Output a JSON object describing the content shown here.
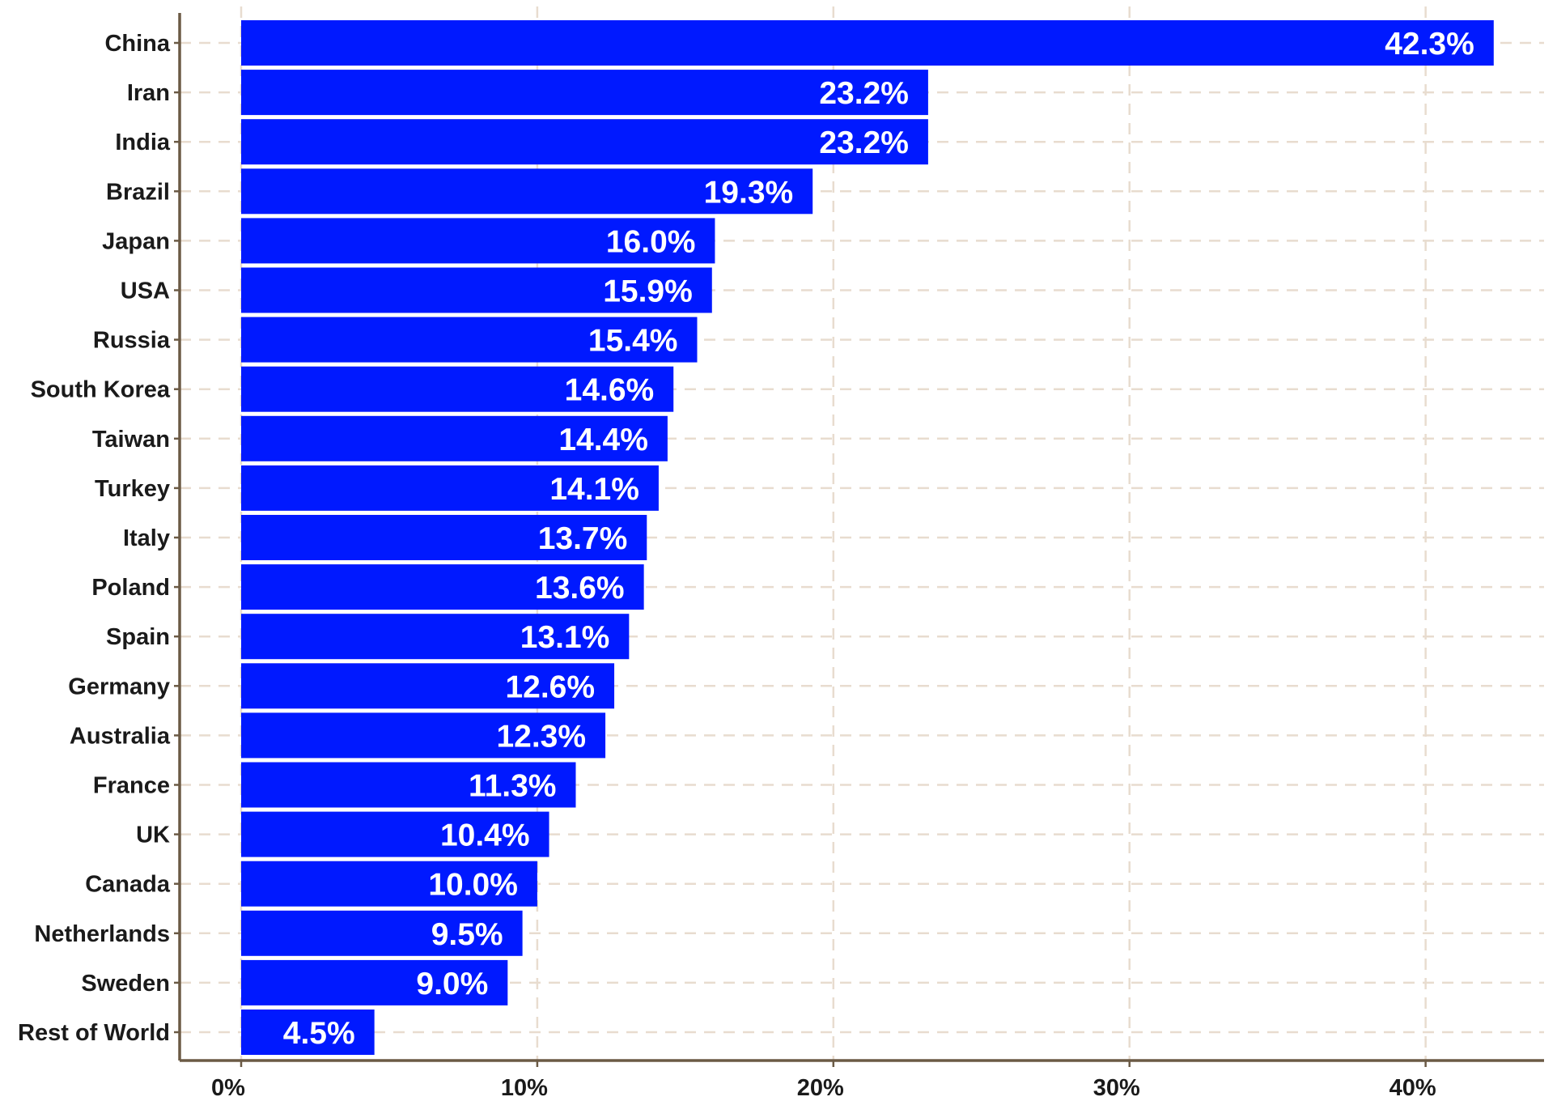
{
  "chart_data": {
    "type": "bar",
    "orientation": "horizontal",
    "categories": [
      "China",
      "Iran",
      "India",
      "Brazil",
      "Japan",
      "USA",
      "Russia",
      "South Korea",
      "Taiwan",
      "Turkey",
      "Italy",
      "Poland",
      "Spain",
      "Germany",
      "Australia",
      "France",
      "UK",
      "Canada",
      "Netherlands",
      "Sweden",
      "Rest of World"
    ],
    "values": [
      42.3,
      23.2,
      23.2,
      19.3,
      16.0,
      15.9,
      15.4,
      14.6,
      14.4,
      14.1,
      13.7,
      13.6,
      13.1,
      12.6,
      12.3,
      11.3,
      10.4,
      10.0,
      9.5,
      9.0,
      4.5
    ],
    "data_labels": [
      "42.3%",
      "23.2%",
      "23.2%",
      "19.3%",
      "16.0%",
      "15.9%",
      "15.4%",
      "14.6%",
      "14.4%",
      "14.1%",
      "13.7%",
      "13.6%",
      "13.1%",
      "12.6%",
      "12.3%",
      "11.3%",
      "10.4%",
      "10.0%",
      "9.5%",
      "9.0%",
      "4.5%"
    ],
    "x_ticks": [
      0,
      10,
      20,
      30,
      40
    ],
    "x_tick_labels": [
      "0%",
      "10%",
      "20%",
      "30%",
      "40%"
    ],
    "xlim": [
      0,
      44
    ],
    "title": "",
    "xlabel": "",
    "ylabel": "",
    "grid": true,
    "legend": "none",
    "bar_color": "#0019ff",
    "label_color": "#ffffff",
    "grid_color": "#e8dccf",
    "axis_color": "#6b5a45"
  }
}
